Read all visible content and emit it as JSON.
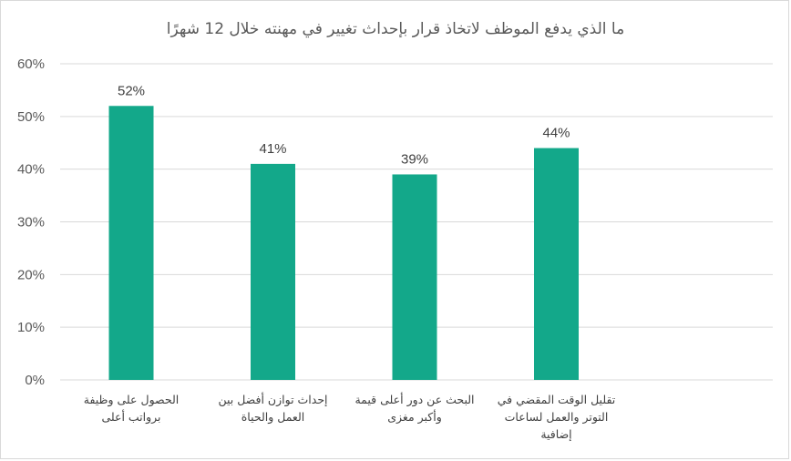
{
  "chart_data": {
    "type": "bar",
    "title": "ما الذي يدفع الموظف لاتخاذ قرار بإحداث تغيير في مهنته خلال 12 شهرًا",
    "categories": [
      "الحصول على وظيفة برواتب أعلى",
      "إحداث توازن أفضل بين العمل والحياة",
      "البحث عن دور أعلى قيمة وأكبر مغزى",
      "تقليل الوقت المقضي في التوتر والعمل لساعات إضافية"
    ],
    "category_lines": [
      [
        "الحصول على وظيفة",
        "برواتب أعلى"
      ],
      [
        "إحداث توازن أفضل بين",
        "العمل والحياة"
      ],
      [
        "البحث عن دور أعلى قيمة",
        "وأكبر مغزى"
      ],
      [
        "تقليل الوقت المقضي في",
        "التوتر والعمل لساعات",
        "إضافية"
      ]
    ],
    "values": [
      52,
      41,
      39,
      44
    ],
    "data_labels": [
      "52%",
      "41%",
      "39%",
      "44%"
    ],
    "ylim": [
      0,
      60
    ],
    "yticks": [
      "0%",
      "10%",
      "20%",
      "30%",
      "40%",
      "50%",
      "60%"
    ],
    "grid": true,
    "legend": "none",
    "bar_color": "#13a88a",
    "grid_color": "#d9d9d9"
  }
}
